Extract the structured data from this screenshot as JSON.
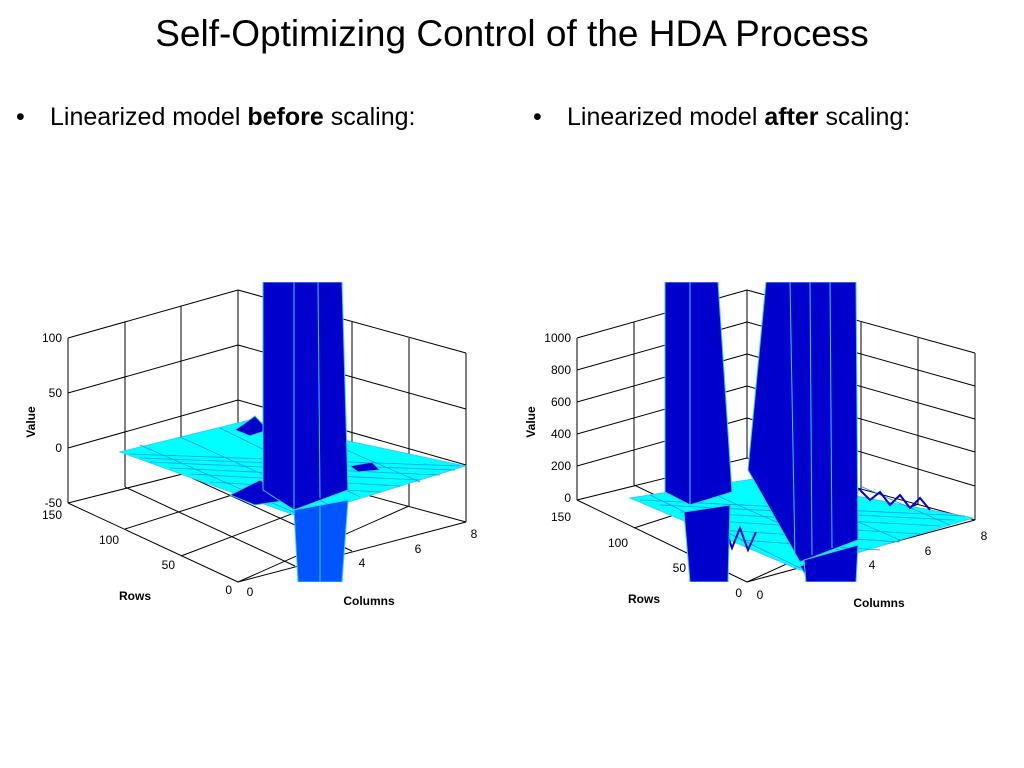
{
  "slide": {
    "title": "Self-Optimizing Control of the HDA Process",
    "bullet_left": {
      "prefix": "Linearized model ",
      "emphasis": "before",
      "suffix": " scaling:"
    },
    "bullet_right": {
      "prefix": "Linearized model ",
      "emphasis": "after",
      "suffix": " scaling:"
    },
    "bullet_symbol": "•"
  },
  "chart_data": [
    {
      "type": "surface3d",
      "title": "",
      "xlabel": "Columns",
      "ylabel": "Rows",
      "zlabel": "Value",
      "xticks": [
        "0",
        "4",
        "6",
        "8"
      ],
      "yticks": [
        "0",
        "50",
        "100",
        "150"
      ],
      "zticks": [
        "-50",
        "0",
        "50",
        "100"
      ],
      "xlim": [
        0,
        8
      ],
      "ylim": [
        0,
        150
      ],
      "zlim": [
        -50,
        100
      ],
      "grid": true,
      "colors": {
        "surface": "#00FFFF",
        "spike": "#0000CC",
        "edge": "#33CCFF",
        "accent": "#0055FF"
      }
    },
    {
      "type": "surface3d",
      "title": "",
      "xlabel": "Columns",
      "ylabel": "Rows",
      "zlabel": "Value",
      "xticks": [
        "0",
        "4",
        "6",
        "8"
      ],
      "yticks": [
        "0",
        "50",
        "100",
        "150"
      ],
      "zticks": [
        "0",
        "200",
        "400",
        "600",
        "800",
        "1000"
      ],
      "xlim": [
        0,
        8
      ],
      "ylim": [
        0,
        150
      ],
      "zlim": [
        0,
        1000
      ],
      "grid": true,
      "colors": {
        "surface": "#00FFFF",
        "spike": "#0000CC",
        "edge": "#33CCFF",
        "accent": "#0055FF"
      }
    }
  ]
}
